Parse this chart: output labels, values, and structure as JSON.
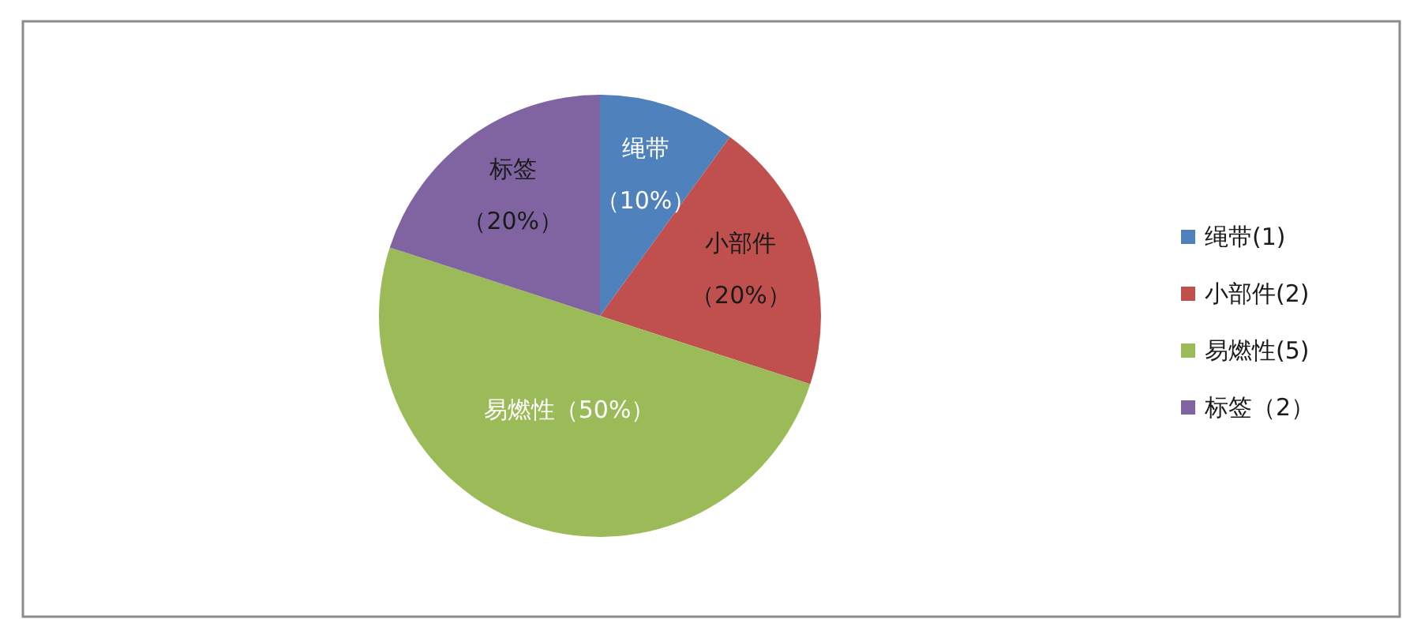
{
  "chart_data": {
    "type": "pie",
    "categories": [
      "绳带(1)",
      "小部件(2)",
      "易燃性(5)",
      "标签（2）"
    ],
    "values": [
      10,
      20,
      50,
      20
    ],
    "colors": [
      "#4f81bd",
      "#c0504d",
      "#9bbb59",
      "#8064a2"
    ],
    "value_labels": [
      "绳带（10%）",
      "小部件（20%）",
      "易燃性（50%）",
      "标签（20%）"
    ],
    "legend": "right"
  }
}
